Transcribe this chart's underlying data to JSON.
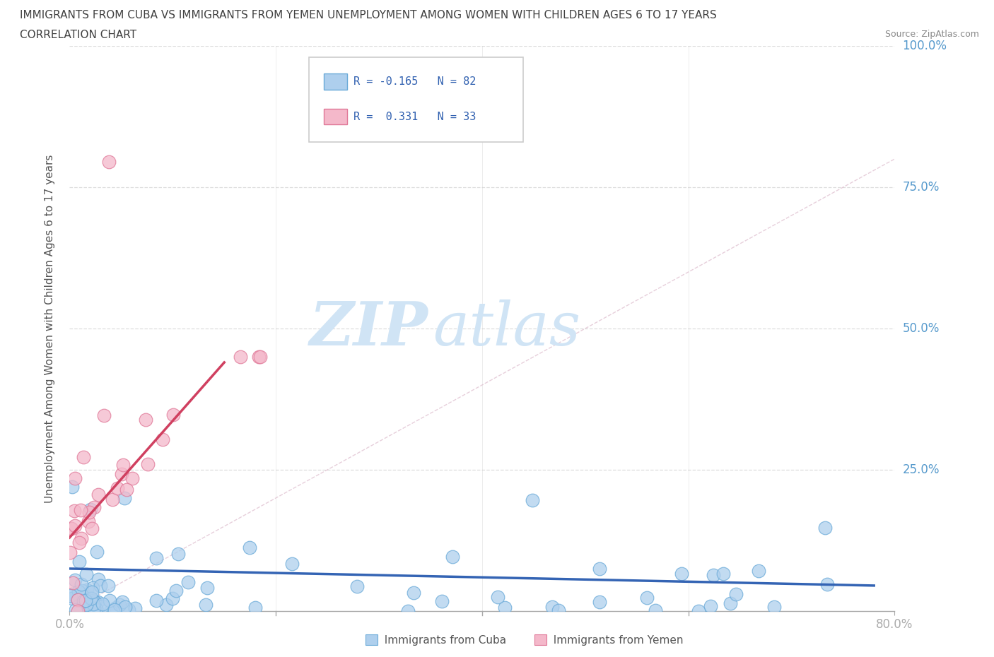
{
  "title_line1": "IMMIGRANTS FROM CUBA VS IMMIGRANTS FROM YEMEN UNEMPLOYMENT AMONG WOMEN WITH CHILDREN AGES 6 TO 17 YEARS",
  "title_line2": "CORRELATION CHART",
  "source": "Source: ZipAtlas.com",
  "ylabel": "Unemployment Among Women with Children Ages 6 to 17 years",
  "xlim": [
    0.0,
    0.8
  ],
  "ylim": [
    0.0,
    1.0
  ],
  "xtick_vals": [
    0.0,
    0.8
  ],
  "xtick_labels": [
    "0.0%",
    "80.0%"
  ],
  "ytick_vals": [
    0.0,
    0.25,
    0.5,
    0.75,
    1.0
  ],
  "ytick_labels": [
    "0.0%",
    "25.0%",
    "50.0%",
    "75.0%",
    "100.0%"
  ],
  "cuba_color": "#aecfed",
  "cuba_edge_color": "#6aaad8",
  "yemen_color": "#f4b8ca",
  "yemen_edge_color": "#e07898",
  "cuba_R": -0.165,
  "cuba_N": 82,
  "yemen_R": 0.331,
  "yemen_N": 33,
  "cuba_trend_color": "#3464b4",
  "yemen_trend_color": "#d04060",
  "diag_color": "#cccccc",
  "grid_color": "#dddddd",
  "watermark_zip": "ZIP",
  "watermark_atlas": "atlas",
  "watermark_color": "#d0e4f5",
  "legend_r_color": "#3060b0",
  "title_color": "#404040",
  "axis_label_color": "#5599cc",
  "right_tick_color": "#5599cc",
  "cuba_trend_x0": 0.0,
  "cuba_trend_y0": 0.075,
  "cuba_trend_x1": 0.78,
  "cuba_trend_y1": 0.045,
  "yemen_trend_x0": 0.0,
  "yemen_trend_y0": 0.13,
  "yemen_trend_x1": 0.15,
  "yemen_trend_y1": 0.44
}
